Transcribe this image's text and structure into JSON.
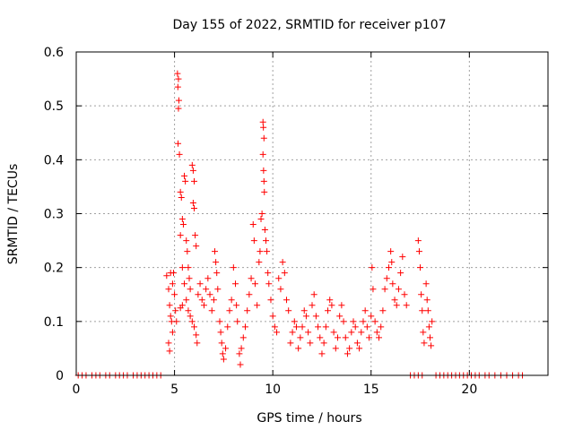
{
  "chart_data": {
    "type": "scatter",
    "title": "Day 155 of 2022, SRMTID for receiver p107",
    "xlabel": "GPS time / hours",
    "ylabel": "SRMTID / TECUs",
    "xlim": [
      0,
      24
    ],
    "ylim": [
      0,
      0.6
    ],
    "x_ticks": [
      0,
      5,
      10,
      15,
      20
    ],
    "x_tick_labels": [
      "0",
      "5",
      "10",
      "15",
      "20"
    ],
    "y_ticks": [
      0,
      0.1,
      0.2,
      0.3,
      0.4,
      0.5,
      0.6
    ],
    "y_tick_labels": [
      "0",
      "0.1",
      "0.2",
      "0.3",
      "0.4",
      "0.5",
      "0.6"
    ],
    "grid": true,
    "marker": "+",
    "colors": {
      "marker": "#ff0000",
      "axis": "#000000",
      "grid": "#a0a0a0"
    },
    "series": [
      {
        "name": "SRMTID",
        "points": [
          [
            0.1,
            0
          ],
          [
            0.3,
            0
          ],
          [
            0.5,
            0
          ],
          [
            0.8,
            0
          ],
          [
            1.0,
            0
          ],
          [
            1.2,
            0
          ],
          [
            1.5,
            0
          ],
          [
            1.7,
            0
          ],
          [
            2.0,
            0
          ],
          [
            2.2,
            0
          ],
          [
            2.4,
            0
          ],
          [
            2.6,
            0
          ],
          [
            2.9,
            0
          ],
          [
            3.1,
            0
          ],
          [
            3.3,
            0
          ],
          [
            3.5,
            0
          ],
          [
            3.7,
            0
          ],
          [
            3.9,
            0
          ],
          [
            4.1,
            0
          ],
          [
            4.3,
            0
          ],
          [
            4.6,
            0.185
          ],
          [
            4.7,
            0.16
          ],
          [
            4.75,
            0.13
          ],
          [
            4.8,
            0.11
          ],
          [
            4.85,
            0.1
          ],
          [
            4.9,
            0.08
          ],
          [
            4.7,
            0.06
          ],
          [
            4.75,
            0.045
          ],
          [
            4.8,
            0.19
          ],
          [
            4.9,
            0.17
          ],
          [
            5.0,
            0.15
          ],
          [
            5.05,
            0.12
          ],
          [
            5.1,
            0.1
          ],
          [
            4.95,
            0.19
          ],
          [
            5.15,
            0.56
          ],
          [
            5.2,
            0.55
          ],
          [
            5.17,
            0.535
          ],
          [
            5.22,
            0.51
          ],
          [
            5.2,
            0.495
          ],
          [
            5.18,
            0.43
          ],
          [
            5.25,
            0.41
          ],
          [
            5.3,
            0.34
          ],
          [
            5.35,
            0.33
          ],
          [
            5.4,
            0.29
          ],
          [
            5.45,
            0.28
          ],
          [
            5.5,
            0.37
          ],
          [
            5.55,
            0.36
          ],
          [
            5.3,
            0.26
          ],
          [
            5.6,
            0.25
          ],
          [
            5.65,
            0.23
          ],
          [
            5.7,
            0.2
          ],
          [
            5.75,
            0.18
          ],
          [
            5.8,
            0.16
          ],
          [
            5.4,
            0.2
          ],
          [
            5.5,
            0.17
          ],
          [
            5.9,
            0.39
          ],
          [
            5.95,
            0.38
          ],
          [
            6.0,
            0.36
          ],
          [
            5.95,
            0.32
          ],
          [
            6.0,
            0.31
          ],
          [
            6.05,
            0.26
          ],
          [
            6.1,
            0.24
          ],
          [
            5.3,
            0.125
          ],
          [
            5.4,
            0.13
          ],
          [
            5.6,
            0.14
          ],
          [
            5.7,
            0.12
          ],
          [
            5.8,
            0.11
          ],
          [
            5.9,
            0.1
          ],
          [
            6.0,
            0.09
          ],
          [
            6.1,
            0.075
          ],
          [
            6.15,
            0.06
          ],
          [
            6.2,
            0.15
          ],
          [
            6.3,
            0.17
          ],
          [
            6.4,
            0.14
          ],
          [
            6.5,
            0.13
          ],
          [
            6.6,
            0.16
          ],
          [
            6.7,
            0.18
          ],
          [
            6.8,
            0.15
          ],
          [
            6.9,
            0.12
          ],
          [
            7.0,
            0.14
          ],
          [
            7.05,
            0.23
          ],
          [
            7.1,
            0.21
          ],
          [
            7.15,
            0.19
          ],
          [
            7.2,
            0.16
          ],
          [
            7.3,
            0.1
          ],
          [
            7.35,
            0.08
          ],
          [
            7.4,
            0.06
          ],
          [
            7.45,
            0.04
          ],
          [
            7.5,
            0.03
          ],
          [
            7.6,
            0.05
          ],
          [
            7.7,
            0.09
          ],
          [
            7.8,
            0.12
          ],
          [
            7.9,
            0.14
          ],
          [
            8.0,
            0.2
          ],
          [
            8.1,
            0.17
          ],
          [
            8.15,
            0.13
          ],
          [
            8.2,
            0.1
          ],
          [
            8.3,
            0.04
          ],
          [
            8.35,
            0.02
          ],
          [
            8.4,
            0.05
          ],
          [
            8.5,
            0.07
          ],
          [
            8.6,
            0.09
          ],
          [
            8.7,
            0.12
          ],
          [
            8.8,
            0.15
          ],
          [
            8.9,
            0.18
          ],
          [
            9.0,
            0.28
          ],
          [
            9.05,
            0.25
          ],
          [
            9.1,
            0.17
          ],
          [
            9.2,
            0.13
          ],
          [
            9.3,
            0.21
          ],
          [
            9.35,
            0.23
          ],
          [
            9.4,
            0.29
          ],
          [
            9.45,
            0.3
          ],
          [
            9.5,
            0.47
          ],
          [
            9.52,
            0.46
          ],
          [
            9.55,
            0.44
          ],
          [
            9.5,
            0.41
          ],
          [
            9.53,
            0.38
          ],
          [
            9.55,
            0.36
          ],
          [
            9.57,
            0.34
          ],
          [
            9.6,
            0.27
          ],
          [
            9.65,
            0.25
          ],
          [
            9.7,
            0.23
          ],
          [
            9.75,
            0.19
          ],
          [
            9.8,
            0.17
          ],
          [
            9.9,
            0.14
          ],
          [
            10.0,
            0.11
          ],
          [
            10.1,
            0.09
          ],
          [
            10.2,
            0.08
          ],
          [
            10.3,
            0.18
          ],
          [
            10.4,
            0.16
          ],
          [
            10.5,
            0.21
          ],
          [
            10.6,
            0.19
          ],
          [
            10.7,
            0.14
          ],
          [
            10.8,
            0.12
          ],
          [
            10.9,
            0.06
          ],
          [
            11.0,
            0.08
          ],
          [
            11.1,
            0.1
          ],
          [
            11.2,
            0.09
          ],
          [
            11.3,
            0.05
          ],
          [
            11.4,
            0.07
          ],
          [
            11.5,
            0.09
          ],
          [
            11.6,
            0.12
          ],
          [
            11.7,
            0.11
          ],
          [
            11.8,
            0.08
          ],
          [
            11.9,
            0.06
          ],
          [
            12.0,
            0.13
          ],
          [
            12.1,
            0.15
          ],
          [
            12.2,
            0.11
          ],
          [
            12.3,
            0.09
          ],
          [
            12.4,
            0.07
          ],
          [
            12.5,
            0.04
          ],
          [
            12.6,
            0.06
          ],
          [
            12.7,
            0.09
          ],
          [
            12.8,
            0.12
          ],
          [
            12.9,
            0.14
          ],
          [
            13.0,
            0.13
          ],
          [
            13.1,
            0.08
          ],
          [
            13.2,
            0.05
          ],
          [
            13.3,
            0.07
          ],
          [
            13.4,
            0.11
          ],
          [
            13.5,
            0.13
          ],
          [
            13.6,
            0.1
          ],
          [
            13.7,
            0.07
          ],
          [
            13.8,
            0.04
          ],
          [
            13.9,
            0.05
          ],
          [
            14.0,
            0.08
          ],
          [
            14.1,
            0.1
          ],
          [
            14.2,
            0.09
          ],
          [
            14.3,
            0.06
          ],
          [
            14.4,
            0.05
          ],
          [
            14.5,
            0.08
          ],
          [
            14.6,
            0.1
          ],
          [
            14.7,
            0.12
          ],
          [
            14.8,
            0.09
          ],
          [
            14.9,
            0.07
          ],
          [
            15.0,
            0.11
          ],
          [
            15.05,
            0.2
          ],
          [
            15.1,
            0.16
          ],
          [
            15.2,
            0.1
          ],
          [
            15.3,
            0.08
          ],
          [
            15.4,
            0.07
          ],
          [
            15.5,
            0.09
          ],
          [
            15.6,
            0.12
          ],
          [
            15.7,
            0.16
          ],
          [
            15.8,
            0.18
          ],
          [
            15.9,
            0.2
          ],
          [
            16.0,
            0.23
          ],
          [
            16.05,
            0.21
          ],
          [
            16.1,
            0.17
          ],
          [
            16.2,
            0.14
          ],
          [
            16.3,
            0.13
          ],
          [
            16.4,
            0.16
          ],
          [
            16.5,
            0.19
          ],
          [
            16.6,
            0.22
          ],
          [
            16.7,
            0.15
          ],
          [
            16.8,
            0.13
          ],
          [
            17.0,
            0
          ],
          [
            17.2,
            0
          ],
          [
            17.4,
            0
          ],
          [
            17.6,
            0
          ],
          [
            17.4,
            0.25
          ],
          [
            17.45,
            0.23
          ],
          [
            17.5,
            0.2
          ],
          [
            17.55,
            0.15
          ],
          [
            17.6,
            0.12
          ],
          [
            17.65,
            0.08
          ],
          [
            17.7,
            0.06
          ],
          [
            17.8,
            0.17
          ],
          [
            17.85,
            0.14
          ],
          [
            17.9,
            0.12
          ],
          [
            17.95,
            0.09
          ],
          [
            18.0,
            0.07
          ],
          [
            18.05,
            0.055
          ],
          [
            18.1,
            0.1
          ],
          [
            18.3,
            0
          ],
          [
            18.5,
            0
          ],
          [
            18.7,
            0
          ],
          [
            18.9,
            0
          ],
          [
            19.1,
            0
          ],
          [
            19.3,
            0
          ],
          [
            19.5,
            0
          ],
          [
            19.7,
            0
          ],
          [
            19.9,
            0
          ],
          [
            20.1,
            0
          ],
          [
            20.3,
            0
          ],
          [
            20.5,
            0
          ],
          [
            20.8,
            0
          ],
          [
            21.0,
            0
          ],
          [
            21.3,
            0
          ],
          [
            21.6,
            0
          ],
          [
            21.9,
            0
          ],
          [
            22.2,
            0
          ],
          [
            22.5,
            0
          ],
          [
            22.7,
            0
          ]
        ]
      }
    ]
  }
}
